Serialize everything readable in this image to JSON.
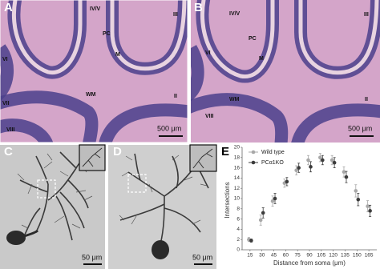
{
  "panels": {
    "A": {
      "label": "A",
      "annotations": [
        "IV/V",
        "III",
        "PC",
        "M",
        "VI",
        "WM",
        "VII",
        "VIII",
        "II"
      ],
      "scale_bar": "500 μm"
    },
    "B": {
      "label": "B",
      "annotations": [
        "IV/V",
        "III",
        "PC",
        "M",
        "VI",
        "WM",
        "VIII",
        "II"
      ],
      "scale_bar": "500 μm"
    },
    "C": {
      "label": "C",
      "scale_bar": "50 μm"
    },
    "D": {
      "label": "D",
      "scale_bar": "50 μm"
    },
    "E": {
      "label": "E"
    }
  },
  "chart_data": {
    "type": "line",
    "x_label": "Distance from soma (μm)",
    "y_label": "Intersections",
    "x": [
      15,
      30,
      45,
      60,
      75,
      90,
      105,
      120,
      135,
      150,
      165
    ],
    "series": [
      {
        "name": "Wild type",
        "color": "#a8a8a8",
        "values": [
          2,
          5.8,
          9.5,
          13,
          15.5,
          17.5,
          18,
          17.5,
          15.2,
          11.5,
          8.5
        ],
        "errors": [
          0.4,
          1,
          1,
          0.8,
          0.9,
          0.9,
          0.8,
          0.9,
          1,
          1.2,
          1.1
        ]
      },
      {
        "name": "PCα1KO",
        "color": "#3c3c3c",
        "values": [
          1.8,
          7.2,
          10,
          13.3,
          16,
          16.2,
          17.5,
          17,
          14.2,
          9.8,
          7.6
        ],
        "errors": [
          0.3,
          1,
          1,
          0.8,
          0.9,
          1,
          0.9,
          1,
          1.1,
          1.2,
          1.1
        ]
      }
    ],
    "xlim": [
      5,
      175
    ],
    "xticks": [
      15,
      30,
      45,
      60,
      75,
      90,
      105,
      120,
      135,
      150,
      165
    ],
    "ylim": [
      0,
      20
    ],
    "yticks": [
      0,
      2,
      4,
      6,
      8,
      10,
      12,
      14,
      16,
      18,
      20
    ],
    "legend": "top-left"
  }
}
